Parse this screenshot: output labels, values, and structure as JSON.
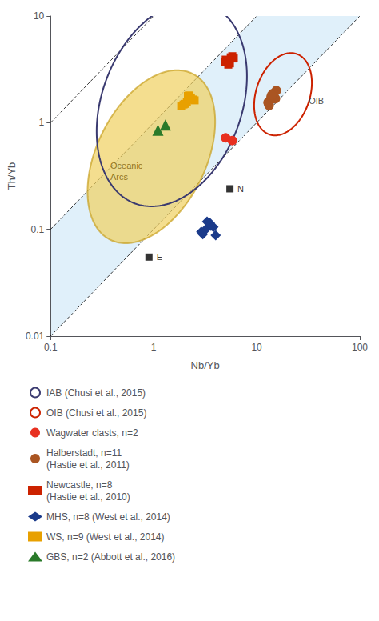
{
  "chart_data": {
    "type": "scatter",
    "log": true,
    "xlabel": "Nb/Yb",
    "ylabel": "Th/Yb",
    "xlim": [
      0.1,
      100.0
    ],
    "ylim": [
      0.01,
      10.0
    ],
    "xticks": [
      0.1,
      1,
      10,
      100
    ],
    "yticks": [
      0.01,
      0.1,
      1,
      10
    ],
    "grid": false,
    "legend": "bottom",
    "series": [
      {
        "type": "band",
        "slopes": [
          0.1,
          1.0
        ],
        "color": "#d0e8f8"
      },
      {
        "type": "line",
        "slopes": [
          0.1,
          1.0,
          10.0
        ],
        "line_style": "dashed",
        "color": "#000000"
      },
      {
        "type": "ellipse",
        "center": [
          0.95,
          0.48
        ],
        "width": 1.05,
        "height": 1.75,
        "angle": -28,
        "color": "#c8a020",
        "fill_color": "#f0d060"
      },
      {
        "type": "ellipse",
        "name": "IAB (Chusi et al., 2015)",
        "center": [
          1.5,
          1.5
        ],
        "width": 1.35,
        "height": 2.0,
        "angle": -22,
        "color": "#3a3a70"
      },
      {
        "type": "ellipse",
        "name": "OIB (Chusi et al., 2015)",
        "center": [
          18.0,
          1.85
        ],
        "width": 0.52,
        "height": 0.8,
        "angle": -20,
        "color": "#cc2200"
      },
      {
        "type": "scatter",
        "name": "Wagwater clasts, n=2",
        "marker": "circle",
        "color": "#e83020",
        "x": [
          5.0,
          5.8
        ],
        "values": [
          0.72,
          0.68
        ]
      },
      {
        "type": "scatter",
        "name": "Halberstadt, n=11\n(Hastie et al., 2011)",
        "marker": "circle",
        "color": "#aa5522",
        "x": [
          13.0,
          14.2,
          13.5,
          15.5,
          14.8,
          13.2,
          14.5,
          12.9,
          15.2,
          13.8,
          14.0
        ],
        "values": [
          1.52,
          1.78,
          1.62,
          2.0,
          1.72,
          1.45,
          1.88,
          1.55,
          1.68,
          1.75,
          1.82
        ]
      },
      {
        "type": "scatter",
        "name": "Newcastle, n=8\n(Hastie et al., 2010)",
        "marker": "square",
        "color": "#cc2200",
        "x": [
          5.0,
          5.5,
          5.2,
          5.8,
          4.9,
          5.3,
          6.0,
          5.6
        ],
        "values": [
          3.9,
          3.6,
          3.8,
          4.2,
          3.7,
          3.5,
          4.0,
          4.1
        ]
      },
      {
        "type": "scatter",
        "name": "MHS, n=8 (West et al., 2014)",
        "marker": "diamond",
        "color": "#1a3a8a",
        "x": [
          3.0,
          3.5,
          3.2,
          3.8,
          4.0,
          2.9,
          3.6,
          3.3
        ],
        "values": [
          0.09,
          0.115,
          0.1,
          0.105,
          0.088,
          0.095,
          0.108,
          0.118
        ]
      },
      {
        "type": "scatter",
        "name": "WS, n=9 (West et al., 2014)",
        "marker": "square",
        "color": "#e8a000",
        "x": [
          2.0,
          2.2,
          2.5,
          2.3,
          1.85,
          2.1,
          2.4,
          1.95,
          2.15
        ],
        "values": [
          1.5,
          1.8,
          1.62,
          1.72,
          1.42,
          1.55,
          1.65,
          1.48,
          1.78
        ]
      },
      {
        "type": "scatter",
        "name": "GBS, n=2 (Abbott et al., 2016)",
        "marker": "triangle",
        "color": "#2a7a2a",
        "x": [
          1.1,
          1.3
        ],
        "values": [
          0.85,
          0.95
        ]
      }
    ],
    "annotations": [
      {
        "text": "E",
        "x": 0.9,
        "y": 0.055,
        "marker": "square",
        "color": "#000000"
      },
      {
        "text": "N",
        "x": 5.5,
        "y": 0.24,
        "marker": "square",
        "color": "#000000"
      },
      {
        "text": "OIB",
        "x": 32.0,
        "y": 1.6
      },
      {
        "text": "Oceanic\nArcs",
        "x": 0.38,
        "y": 0.35,
        "color": "#7a5800"
      }
    ]
  }
}
